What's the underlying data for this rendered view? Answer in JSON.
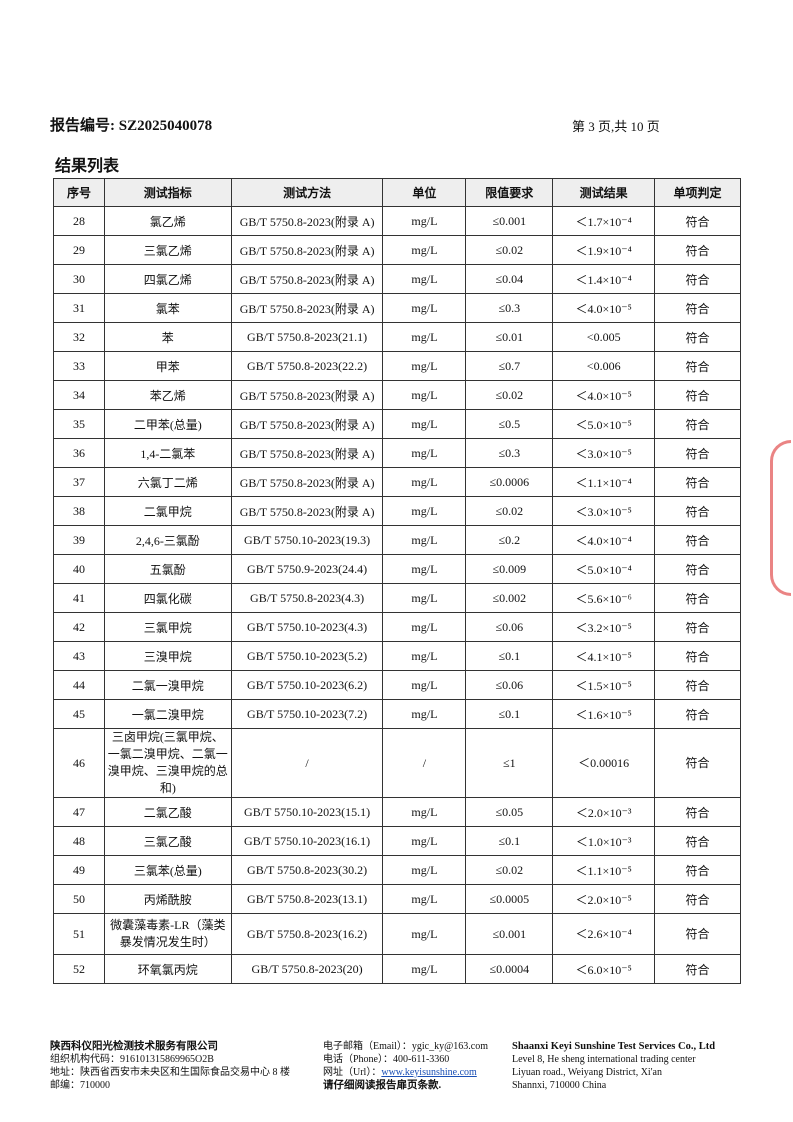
{
  "header": {
    "report_no": "报告编号: SZ2025040078",
    "page": "第 3 页,共 10 页"
  },
  "section_title": "结果列表",
  "table": {
    "columns": [
      "序号",
      "测试指标",
      "测试方法",
      "单位",
      "限值要求",
      "测试结果",
      "单项判定"
    ],
    "rows": [
      [
        "28",
        "氯乙烯",
        "GB/T 5750.8-2023(附录 A)",
        "mg/L",
        "≤0.001",
        "＜1.7×10⁻⁴",
        "符合"
      ],
      [
        "29",
        "三氯乙烯",
        "GB/T 5750.8-2023(附录 A)",
        "mg/L",
        "≤0.02",
        "＜1.9×10⁻⁴",
        "符合"
      ],
      [
        "30",
        "四氯乙烯",
        "GB/T 5750.8-2023(附录 A)",
        "mg/L",
        "≤0.04",
        "＜1.4×10⁻⁴",
        "符合"
      ],
      [
        "31",
        "氯苯",
        "GB/T 5750.8-2023(附录 A)",
        "mg/L",
        "≤0.3",
        "＜4.0×10⁻⁵",
        "符合"
      ],
      [
        "32",
        "苯",
        "GB/T 5750.8-2023(21.1)",
        "mg/L",
        "≤0.01",
        "<0.005",
        "符合"
      ],
      [
        "33",
        "甲苯",
        "GB/T 5750.8-2023(22.2)",
        "mg/L",
        "≤0.7",
        "<0.006",
        "符合"
      ],
      [
        "34",
        "苯乙烯",
        "GB/T 5750.8-2023(附录 A)",
        "mg/L",
        "≤0.02",
        "＜4.0×10⁻⁵",
        "符合"
      ],
      [
        "35",
        "二甲苯(总量)",
        "GB/T 5750.8-2023(附录 A)",
        "mg/L",
        "≤0.5",
        "＜5.0×10⁻⁵",
        "符合"
      ],
      [
        "36",
        "1,4-二氯苯",
        "GB/T 5750.8-2023(附录 A)",
        "mg/L",
        "≤0.3",
        "＜3.0×10⁻⁵",
        "符合"
      ],
      [
        "37",
        "六氯丁二烯",
        "GB/T 5750.8-2023(附录 A)",
        "mg/L",
        "≤0.0006",
        "＜1.1×10⁻⁴",
        "符合"
      ],
      [
        "38",
        "二氯甲烷",
        "GB/T 5750.8-2023(附录 A)",
        "mg/L",
        "≤0.02",
        "＜3.0×10⁻⁵",
        "符合"
      ],
      [
        "39",
        "2,4,6-三氯酚",
        "GB/T 5750.10-2023(19.3)",
        "mg/L",
        "≤0.2",
        "＜4.0×10⁻⁴",
        "符合"
      ],
      [
        "40",
        "五氯酚",
        "GB/T 5750.9-2023(24.4)",
        "mg/L",
        "≤0.009",
        "＜5.0×10⁻⁴",
        "符合"
      ],
      [
        "41",
        "四氯化碳",
        "GB/T 5750.8-2023(4.3)",
        "mg/L",
        "≤0.002",
        "＜5.6×10⁻⁶",
        "符合"
      ],
      [
        "42",
        "三氯甲烷",
        "GB/T 5750.10-2023(4.3)",
        "mg/L",
        "≤0.06",
        "＜3.2×10⁻⁵",
        "符合"
      ],
      [
        "43",
        "三溴甲烷",
        "GB/T 5750.10-2023(5.2)",
        "mg/L",
        "≤0.1",
        "＜4.1×10⁻⁵",
        "符合"
      ],
      [
        "44",
        "二氯一溴甲烷",
        "GB/T 5750.10-2023(6.2)",
        "mg/L",
        "≤0.06",
        "＜1.5×10⁻⁵",
        "符合"
      ],
      [
        "45",
        "一氯二溴甲烷",
        "GB/T 5750.10-2023(7.2)",
        "mg/L",
        "≤0.1",
        "＜1.6×10⁻⁵",
        "符合"
      ],
      [
        "46",
        "三卤甲烷(三氯甲烷、一氯二溴甲烷、二氯一溴甲烷、三溴甲烷的总和)",
        "/",
        "/",
        "≤1",
        "＜0.00016",
        "符合"
      ],
      [
        "47",
        "二氯乙酸",
        "GB/T 5750.10-2023(15.1)",
        "mg/L",
        "≤0.05",
        "＜2.0×10⁻³",
        "符合"
      ],
      [
        "48",
        "三氯乙酸",
        "GB/T 5750.10-2023(16.1)",
        "mg/L",
        "≤0.1",
        "＜1.0×10⁻³",
        "符合"
      ],
      [
        "49",
        "三氯苯(总量)",
        "GB/T 5750.8-2023(30.2)",
        "mg/L",
        "≤0.02",
        "＜1.1×10⁻⁵",
        "符合"
      ],
      [
        "50",
        "丙烯酰胺",
        "GB/T 5750.8-2023(13.1)",
        "mg/L",
        "≤0.0005",
        "＜2.0×10⁻⁵",
        "符合"
      ],
      [
        "51",
        "微囊藻毒素-LR（藻类暴发情况发生时）",
        "GB/T 5750.8-2023(16.2)",
        "mg/L",
        "≤0.001",
        "＜2.6×10⁻⁴",
        "符合"
      ],
      [
        "52",
        "环氧氯丙烷",
        "GB/T 5750.8-2023(20)",
        "mg/L",
        "≤0.0004",
        "＜6.0×10⁻⁵",
        "符合"
      ]
    ]
  },
  "footer": {
    "company_cn": "陕西科仪阳光检测技术服务有限公司",
    "org_code": "组织机构代码：916101315869965O2B",
    "address_cn": "地址：陕西省西安市未央区和生国际食品交易中心 8 楼",
    "postcode": "邮编：710000",
    "email": "电子邮箱（Email）：ygic_ky@163.com",
    "phone": "电话（Phone）：400-611-3360",
    "url_label": "网址（Url）：",
    "url": "www.keyisunshine.com",
    "notice": "请仔细阅读报告扉页条款.",
    "company_en": "Shaanxi Keyi Sunshine Test Services Co., Ltd",
    "addr_en_1": "Level 8, He sheng international trading center",
    "addr_en_2": "Liyuan road., Weiyang District, Xi'an",
    "addr_en_3": "Shannxi, 710000 China"
  },
  "stamp_color": "#d33"
}
